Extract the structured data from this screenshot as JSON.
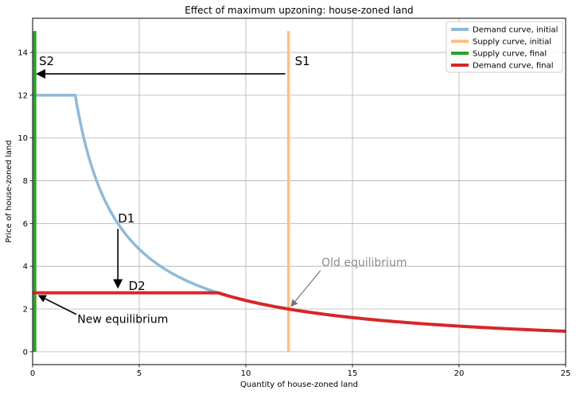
{
  "chart_data": {
    "type": "line",
    "title": "Effect of maximum upzoning: house-zoned land",
    "xlabel": "Quantity of house-zoned land",
    "ylabel": "Price of house-zoned land",
    "xlim": [
      0,
      25
    ],
    "ylim": [
      -0.6,
      15.6
    ],
    "x_ticks": [
      0,
      5,
      10,
      15,
      20,
      25
    ],
    "y_ticks": [
      0,
      2,
      4,
      6,
      8,
      10,
      12,
      14
    ],
    "grid": true,
    "legend_position": "top-right",
    "series": [
      {
        "name": "Demand curve, initial",
        "color": "#8fbad9",
        "points": [
          [
            0,
            12
          ],
          [
            2,
            12
          ],
          [
            2.5,
            9.6
          ],
          [
            3,
            8
          ],
          [
            3.5,
            6.86
          ],
          [
            4,
            6
          ],
          [
            5,
            4.8
          ],
          [
            6,
            4
          ],
          [
            7,
            3.43
          ],
          [
            8,
            3
          ],
          [
            8.7,
            2.76
          ],
          [
            10,
            2.4
          ],
          [
            12,
            2
          ],
          [
            15,
            1.6
          ],
          [
            20,
            1.2
          ],
          [
            25,
            0.96
          ]
        ]
      },
      {
        "name": "Supply curve, initial",
        "color": "#ffbf86",
        "points": [
          [
            12,
            0
          ],
          [
            12,
            15
          ]
        ]
      },
      {
        "name": "Supply curve, final",
        "color": "#2ca02c",
        "points": [
          [
            0.1,
            0
          ],
          [
            0.1,
            15
          ]
        ]
      },
      {
        "name": "Demand curve, final",
        "color": "#d62728",
        "points": [
          [
            0,
            2.76
          ],
          [
            8.7,
            2.76
          ],
          [
            10,
            2.4
          ],
          [
            12,
            2
          ],
          [
            15,
            1.6
          ],
          [
            20,
            1.2
          ],
          [
            25,
            0.96
          ]
        ]
      }
    ],
    "annotations": {
      "s1": "S1",
      "s2": "S2",
      "d1": "D1",
      "d2": "D2",
      "old_eq": "Old equilibrium",
      "new_eq": "New equilibrium"
    }
  }
}
